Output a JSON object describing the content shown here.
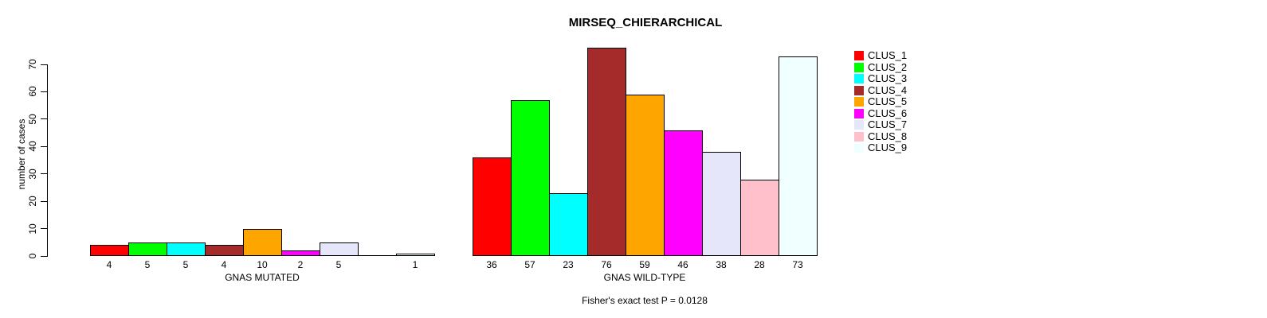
{
  "chart_data": {
    "type": "bar",
    "title": "MIRSEQ_CHIERARCHICAL",
    "ylabel": "number of cases",
    "ylim": [
      0,
      70
    ],
    "yticks": [
      0,
      10,
      20,
      30,
      40,
      50,
      60,
      70
    ],
    "grid": false,
    "legend_position": "right",
    "bar_border_color": "#000000",
    "text_color": "#000000",
    "background_color": "#FFFFFF",
    "clusters": [
      {
        "name": "CLUS_1",
        "color": "#FF0000"
      },
      {
        "name": "CLUS_2",
        "color": "#00FF00"
      },
      {
        "name": "CLUS_3",
        "color": "#00FFFF"
      },
      {
        "name": "CLUS_4",
        "color": "#A52A2A"
      },
      {
        "name": "CLUS_5",
        "color": "#FFA500"
      },
      {
        "name": "CLUS_6",
        "color": "#FF00FF"
      },
      {
        "name": "CLUS_7",
        "color": "#E6E6FA"
      },
      {
        "name": "CLUS_8",
        "color": "#FFC0CB"
      },
      {
        "name": "CLUS_9",
        "color": "#F0FFFF"
      }
    ],
    "groups": [
      {
        "label": "GNAS MUTATED",
        "values": [
          4,
          5,
          5,
          4,
          10,
          2,
          5,
          0,
          1
        ],
        "bar_labels": [
          "4",
          "5",
          "5",
          "4",
          "10",
          "2",
          "5",
          "",
          "1"
        ]
      },
      {
        "label": "GNAS WILD-TYPE",
        "values": [
          36,
          57,
          23,
          76,
          59,
          46,
          38,
          28,
          73
        ],
        "bar_labels": [
          "36",
          "57",
          "23",
          "76",
          "59",
          "46",
          "38",
          "28",
          "73"
        ]
      }
    ],
    "footnote": "Fisher's exact test P = 0.0128"
  }
}
